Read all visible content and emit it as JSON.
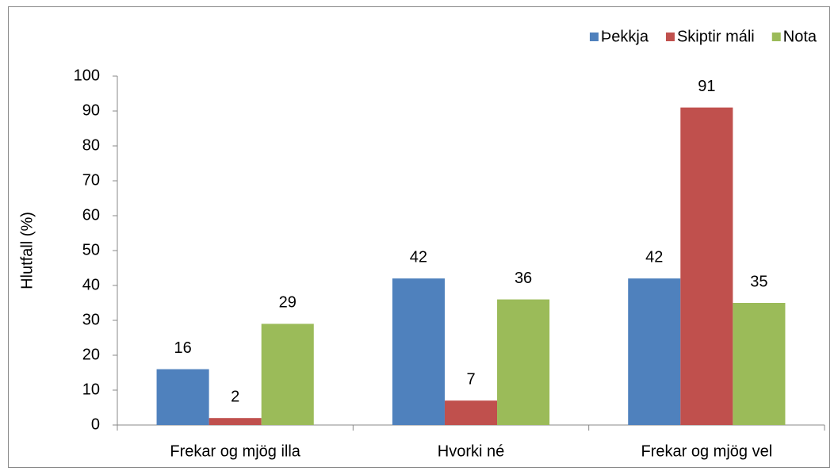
{
  "chart_data": {
    "type": "bar",
    "y_label": "Hlutfall (%)",
    "categories": [
      "Frekar og mjög illa",
      "Hvorki né",
      "Frekar og mjög vel"
    ],
    "series": [
      {
        "name": "Þekkja",
        "color": "#4f81bd",
        "values": [
          16,
          42,
          42
        ]
      },
      {
        "name": "Skiptir máli",
        "color": "#c0504d",
        "values": [
          2,
          7,
          91
        ]
      },
      {
        "name": "Nota",
        "color": "#9bbb59",
        "values": [
          29,
          36,
          35
        ]
      }
    ],
    "ylim": [
      0,
      100
    ],
    "yticks": [
      0,
      10,
      20,
      30,
      40,
      50,
      60,
      70,
      80,
      90,
      100
    ],
    "legend": "top-right",
    "data_labels": true
  }
}
